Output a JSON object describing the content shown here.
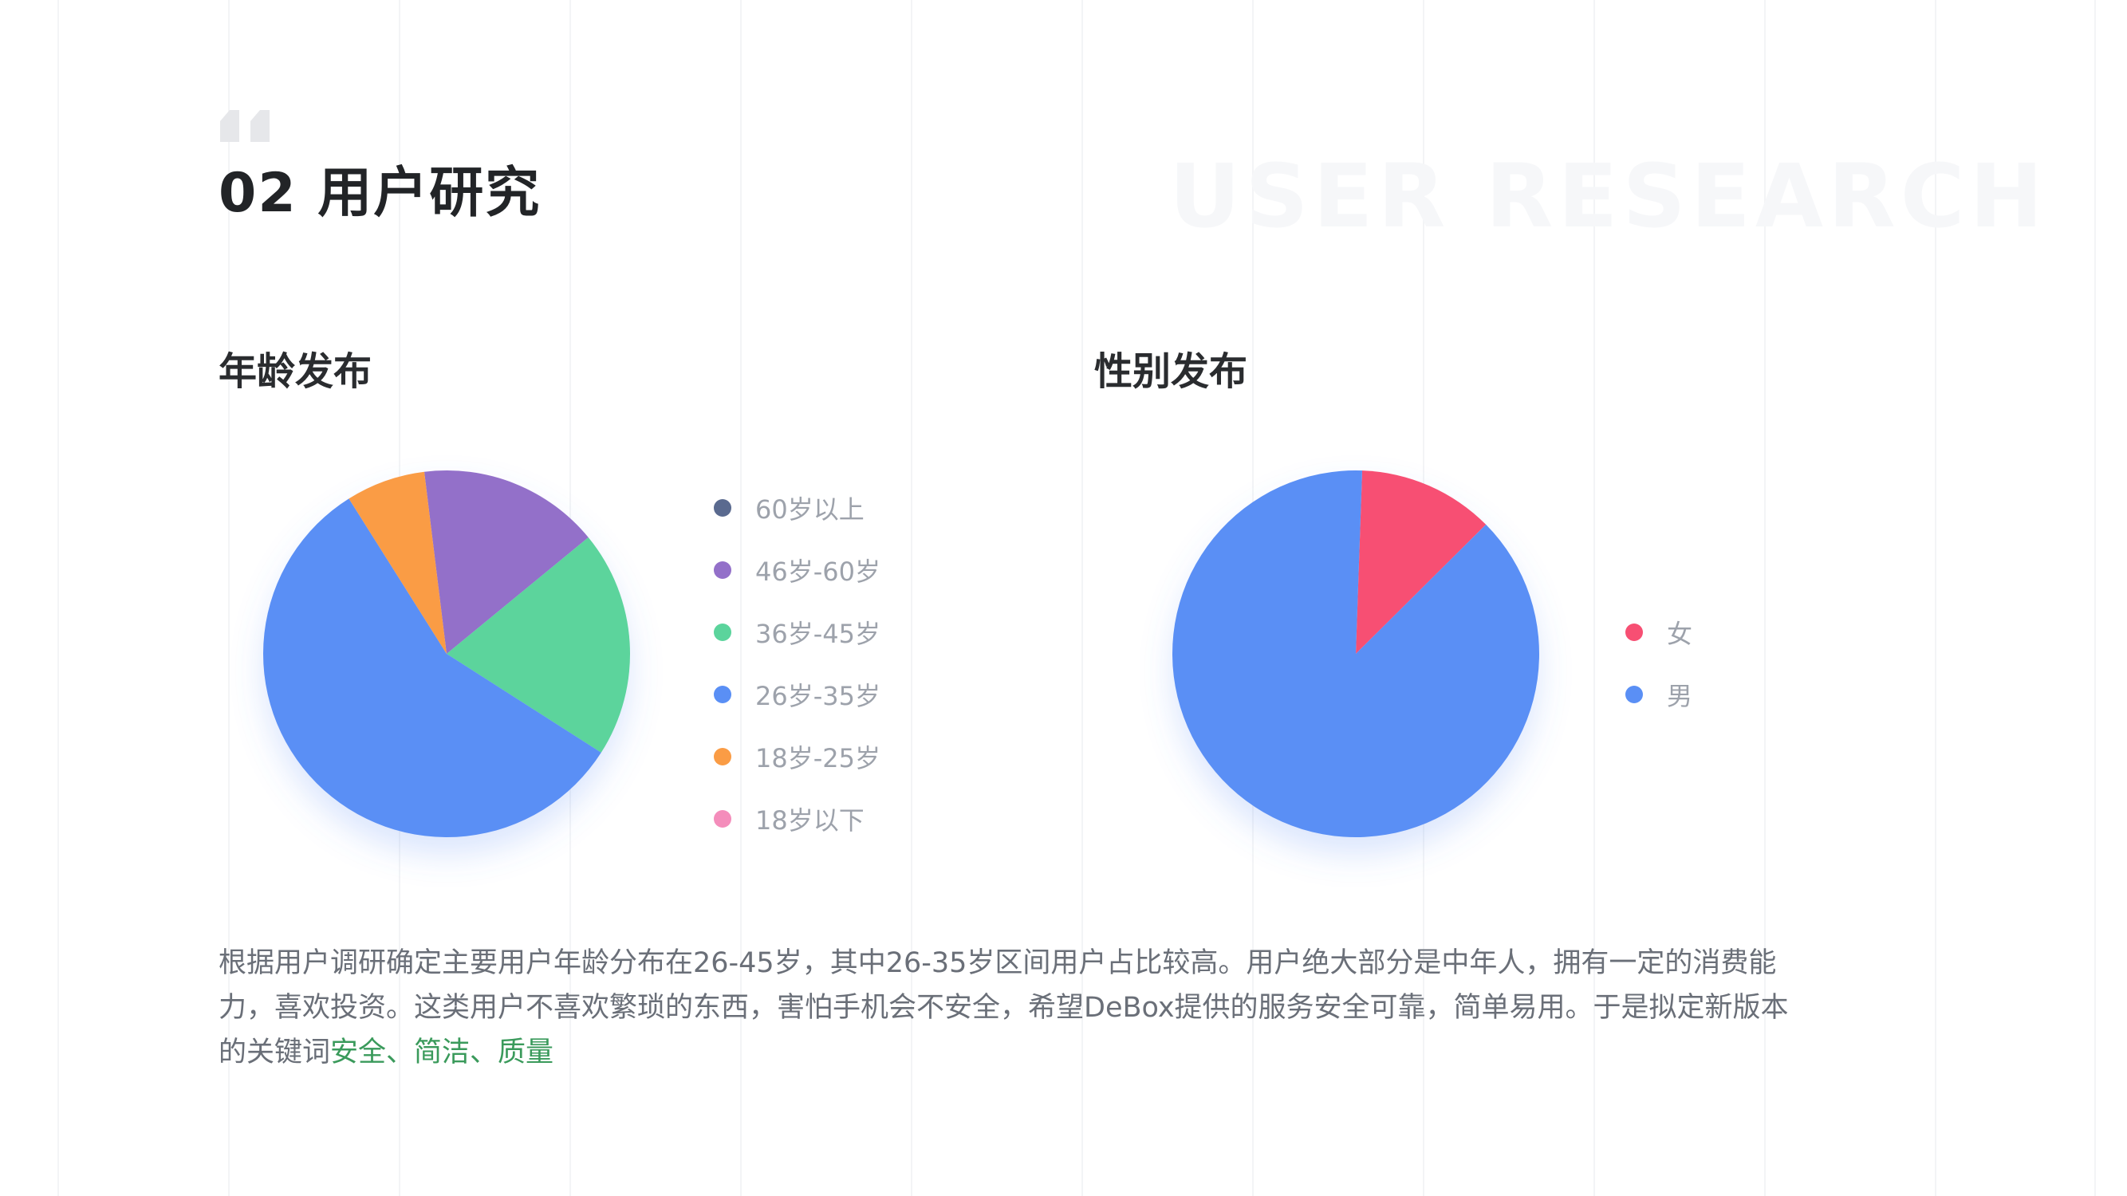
{
  "header": {
    "title": "02 用户研究",
    "watermark": "USER RESEARCH"
  },
  "sections": {
    "age_title": "年龄发布",
    "gender_title": "性别发布"
  },
  "chart_data": [
    {
      "type": "pie",
      "title": "年龄发布",
      "legend_position": "right",
      "series": [
        {
          "name": "60岁以上",
          "value": 0,
          "color": "#5a6a8f"
        },
        {
          "name": "46岁-60岁",
          "value": 16,
          "color": "#9370c9"
        },
        {
          "name": "36岁-45岁",
          "value": 20,
          "color": "#5bd49c"
        },
        {
          "name": "26岁-35岁",
          "value": 57,
          "color": "#5a8ff5"
        },
        {
          "name": "18岁-25岁",
          "value": 7,
          "color": "#fa9c45"
        },
        {
          "name": "18岁以下",
          "value": 0,
          "color": "#f48dbb"
        }
      ]
    },
    {
      "type": "pie",
      "title": "性别发布",
      "legend_position": "right",
      "series": [
        {
          "name": "女",
          "value": 12,
          "color": "#f74f73"
        },
        {
          "name": "男",
          "value": 88,
          "color": "#5a8ff5"
        }
      ]
    }
  ],
  "summary": {
    "text": "根据用户调研确定主要用户年龄分布在26-45岁，其中26-35岁区间用户占比较高。用户绝大部分是中年人，拥有一定的消费能力，喜欢投资。这类用户不喜欢繁琐的东西，害怕手机会不安全，希望DeBox提供的服务安全可靠，简单易用。于是拟定新版本的关键词",
    "keywords": "安全、简洁、质量"
  },
  "colors": {
    "keyword": "#3a9a5b",
    "title": "#222427",
    "body": "#6a6f78"
  }
}
